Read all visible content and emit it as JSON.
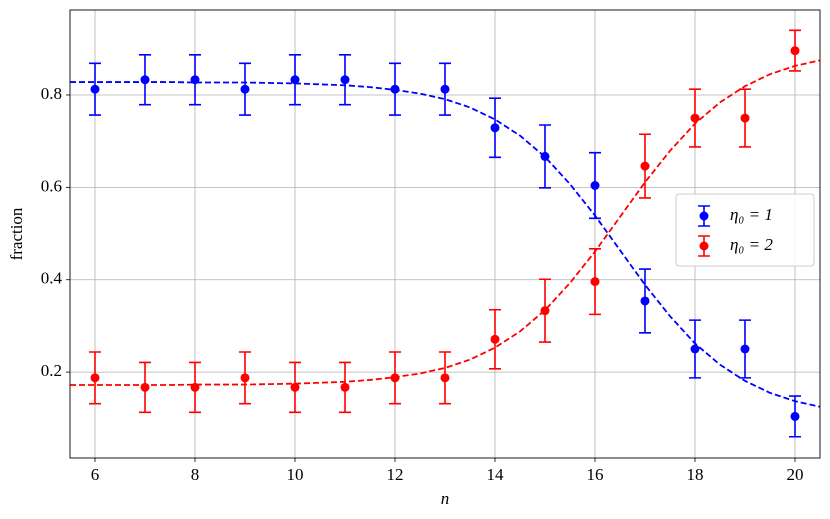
{
  "chart_data": {
    "type": "errorbar",
    "x_label": "n",
    "y_label": "fraction",
    "xlim": [
      5.5,
      20.5
    ],
    "ylim": [
      0.014,
      0.984
    ],
    "xticks": [
      6,
      8,
      10,
      12,
      14,
      16,
      18,
      20
    ],
    "yticks": [
      0.2,
      0.4,
      0.6,
      0.8
    ],
    "grid": true,
    "legend_position": "right",
    "series": [
      {
        "name": "η₀ = 1",
        "color": "#0000ff",
        "x": [
          6,
          7,
          8,
          9,
          10,
          11,
          12,
          13,
          14,
          15,
          16,
          17,
          18,
          19,
          20
        ],
        "values": [
          0.8125,
          0.833,
          0.833,
          0.8125,
          0.833,
          0.833,
          0.8125,
          0.8125,
          0.729,
          0.667,
          0.604,
          0.354,
          0.25,
          0.25,
          0.104
        ],
        "errors": [
          0.056,
          0.054,
          0.054,
          0.056,
          0.054,
          0.054,
          0.056,
          0.056,
          0.064,
          0.068,
          0.071,
          0.069,
          0.0625,
          0.0625,
          0.044
        ]
      },
      {
        "name": "η₀ = 2",
        "color": "#ff0000",
        "x": [
          6,
          7,
          8,
          9,
          10,
          11,
          12,
          13,
          14,
          15,
          16,
          17,
          18,
          19,
          20
        ],
        "values": [
          0.1875,
          0.167,
          0.167,
          0.1875,
          0.167,
          0.167,
          0.1875,
          0.1875,
          0.271,
          0.333,
          0.396,
          0.646,
          0.75,
          0.75,
          0.896
        ],
        "errors": [
          0.056,
          0.054,
          0.054,
          0.056,
          0.054,
          0.054,
          0.056,
          0.056,
          0.064,
          0.068,
          0.071,
          0.069,
          0.0625,
          0.0625,
          0.044
        ]
      }
    ],
    "fits": [
      {
        "color": "#0000ff",
        "x": [
          5.5,
          6,
          6.5,
          7,
          7.5,
          8,
          8.5,
          9,
          9.5,
          10,
          10.5,
          11,
          11.5,
          12,
          12.5,
          13,
          13.5,
          14,
          14.5,
          15,
          15.5,
          16,
          16.5,
          17,
          17.5,
          18,
          18.5,
          19,
          19.5,
          20,
          20.5
        ],
        "values": [
          0.828,
          0.828,
          0.828,
          0.828,
          0.828,
          0.827,
          0.827,
          0.827,
          0.826,
          0.825,
          0.823,
          0.821,
          0.817,
          0.811,
          0.803,
          0.791,
          0.773,
          0.747,
          0.712,
          0.666,
          0.607,
          0.539,
          0.464,
          0.389,
          0.321,
          0.262,
          0.216,
          0.181,
          0.155,
          0.137,
          0.125
        ]
      },
      {
        "color": "#ff0000",
        "x": [
          5.5,
          6,
          6.5,
          7,
          7.5,
          8,
          8.5,
          9,
          9.5,
          10,
          10.5,
          11,
          11.5,
          12,
          12.5,
          13,
          13.5,
          14,
          14.5,
          15,
          15.5,
          16,
          16.5,
          17,
          17.5,
          18,
          18.5,
          19,
          19.5,
          20,
          20.5
        ],
        "values": [
          0.172,
          0.172,
          0.172,
          0.172,
          0.172,
          0.173,
          0.173,
          0.173,
          0.174,
          0.175,
          0.177,
          0.179,
          0.183,
          0.189,
          0.197,
          0.209,
          0.227,
          0.253,
          0.288,
          0.334,
          0.393,
          0.461,
          0.536,
          0.611,
          0.679,
          0.738,
          0.784,
          0.819,
          0.845,
          0.863,
          0.875
        ]
      }
    ]
  }
}
